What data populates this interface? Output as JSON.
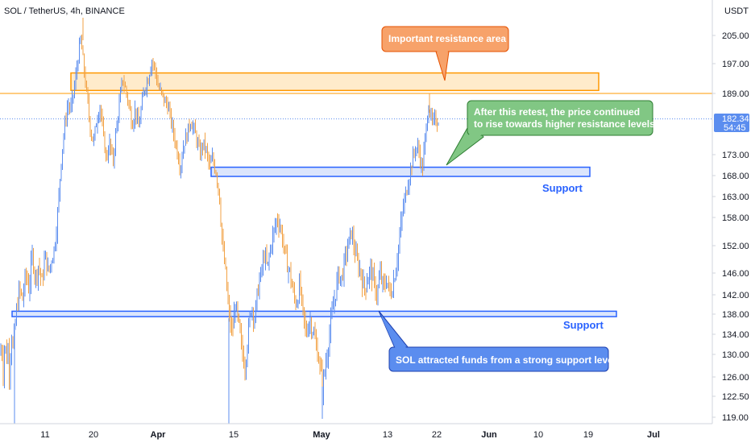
{
  "chart_data": {
    "type": "candlestick",
    "title": "SOL / TetherUS, 4h, BINANCE",
    "currency": "USDT",
    "y_ticks": [
      205.0,
      197.0,
      189.0,
      182.34,
      173.0,
      168.0,
      163.0,
      158.0,
      152.0,
      146.0,
      142.0,
      138.0,
      134.0,
      130.0,
      126.0,
      122.5,
      119.0
    ],
    "y_tick_labels": [
      "205.00",
      "197.00",
      "189.00",
      "173.00",
      "168.00",
      "163.00",
      "158.00",
      "152.00",
      "146.00",
      "142.00",
      "138.00",
      "134.00",
      "130.00",
      "126.00",
      "122.50",
      "119.00"
    ],
    "x_tick_labels": [
      "11",
      "20",
      "Apr",
      "15",
      "May",
      "13",
      "22",
      "Jun",
      "10",
      "19",
      "Jul"
    ],
    "bold_x_ticks": [
      "Apr",
      "May",
      "Jun",
      "Jul"
    ],
    "current_price": "182.34",
    "countdown": "54:45",
    "resistance_line": 189.0,
    "zones": [
      {
        "name": "resistance",
        "low": 189.8,
        "high": 194.5,
        "color": "#ff9800"
      },
      {
        "name": "support-upper",
        "low": 167.8,
        "high": 170.0,
        "color": "#2962ff"
      },
      {
        "name": "support-lower",
        "low": 137.5,
        "high": 138.6,
        "color": "#2962ff"
      }
    ],
    "support_label": "Support",
    "annotations": [
      {
        "name": "resistance-callout",
        "lines": [
          "Important resistance area"
        ],
        "color": "#f7a26a"
      },
      {
        "name": "retest-callout",
        "lines": [
          "After this retest, the price continued",
          "to rise towards higher resistance levels."
        ],
        "color": "#81c784"
      },
      {
        "name": "funds-callout",
        "lines": [
          "SOL attracted funds from a strong support level"
        ],
        "color": "#5b8def"
      }
    ],
    "price_path": [
      [
        0,
        130
      ],
      [
        2,
        132
      ],
      [
        4,
        127
      ],
      [
        6,
        133
      ],
      [
        8,
        129
      ],
      [
        10,
        131
      ],
      [
        12,
        126
      ],
      [
        14,
        135
      ],
      [
        16,
        131
      ],
      [
        20,
        138
      ],
      [
        24,
        143
      ],
      [
        28,
        141
      ],
      [
        32,
        146
      ],
      [
        36,
        143
      ],
      [
        40,
        150
      ],
      [
        44,
        145
      ],
      [
        48,
        148
      ],
      [
        52,
        144
      ],
      [
        56,
        150
      ],
      [
        60,
        146
      ],
      [
        64,
        149
      ],
      [
        68,
        152
      ],
      [
        72,
        160
      ],
      [
        76,
        172
      ],
      [
        80,
        180
      ],
      [
        84,
        186
      ],
      [
        88,
        185
      ],
      [
        92,
        190
      ],
      [
        96,
        197
      ],
      [
        100,
        204
      ],
      [
        104,
        196
      ],
      [
        108,
        188
      ],
      [
        112,
        180
      ],
      [
        116,
        176
      ],
      [
        120,
        182
      ],
      [
        124,
        186
      ],
      [
        128,
        178
      ],
      [
        132,
        172
      ],
      [
        136,
        176
      ],
      [
        140,
        171
      ],
      [
        144,
        179
      ],
      [
        148,
        186
      ],
      [
        152,
        193
      ],
      [
        156,
        190
      ],
      [
        160,
        186
      ],
      [
        164,
        181
      ],
      [
        168,
        185
      ],
      [
        172,
        180
      ],
      [
        176,
        186
      ],
      [
        180,
        191
      ],
      [
        184,
        193
      ],
      [
        188,
        198
      ],
      [
        192,
        196
      ],
      [
        196,
        191
      ],
      [
        200,
        189
      ],
      [
        204,
        187
      ],
      [
        208,
        186
      ],
      [
        212,
        182
      ],
      [
        216,
        178
      ],
      [
        220,
        174
      ],
      [
        224,
        170
      ],
      [
        228,
        176
      ],
      [
        232,
        178
      ],
      [
        236,
        182
      ],
      [
        240,
        180
      ],
      [
        244,
        177
      ],
      [
        248,
        173
      ],
      [
        252,
        176
      ],
      [
        256,
        174
      ],
      [
        260,
        170
      ],
      [
        264,
        172
      ],
      [
        268,
        169
      ],
      [
        272,
        164
      ],
      [
        276,
        152
      ],
      [
        280,
        146
      ],
      [
        284,
        138
      ],
      [
        288,
        134
      ],
      [
        292,
        140
      ],
      [
        296,
        136
      ],
      [
        300,
        131
      ],
      [
        304,
        128
      ],
      [
        308,
        134
      ],
      [
        312,
        140
      ],
      [
        316,
        137
      ],
      [
        320,
        143
      ],
      [
        324,
        146
      ],
      [
        328,
        150
      ],
      [
        332,
        147
      ],
      [
        336,
        152
      ],
      [
        340,
        155
      ],
      [
        344,
        158
      ],
      [
        348,
        156
      ],
      [
        352,
        152
      ],
      [
        356,
        148
      ],
      [
        360,
        146
      ],
      [
        364,
        142
      ],
      [
        368,
        140
      ],
      [
        372,
        144
      ],
      [
        376,
        138
      ],
      [
        380,
        134
      ],
      [
        384,
        137
      ],
      [
        388,
        135
      ],
      [
        392,
        132
      ],
      [
        396,
        129
      ],
      [
        400,
        124
      ],
      [
        404,
        128
      ],
      [
        408,
        133
      ],
      [
        412,
        138
      ],
      [
        416,
        142
      ],
      [
        420,
        146
      ],
      [
        424,
        145
      ],
      [
        428,
        149
      ],
      [
        432,
        152
      ],
      [
        436,
        155
      ],
      [
        440,
        151
      ],
      [
        444,
        148
      ],
      [
        448,
        146
      ],
      [
        452,
        143
      ],
      [
        456,
        145
      ],
      [
        460,
        147
      ],
      [
        464,
        144
      ],
      [
        468,
        142
      ],
      [
        472,
        146
      ],
      [
        476,
        143
      ],
      [
        480,
        145
      ],
      [
        484,
        142
      ],
      [
        488,
        144
      ],
      [
        492,
        148
      ],
      [
        496,
        154
      ],
      [
        500,
        160
      ],
      [
        504,
        164
      ],
      [
        508,
        168
      ],
      [
        512,
        172
      ],
      [
        516,
        175
      ],
      [
        520,
        174
      ],
      [
        524,
        169
      ],
      [
        528,
        178
      ],
      [
        532,
        186
      ],
      [
        536,
        181
      ],
      [
        540,
        182
      ]
    ]
  }
}
